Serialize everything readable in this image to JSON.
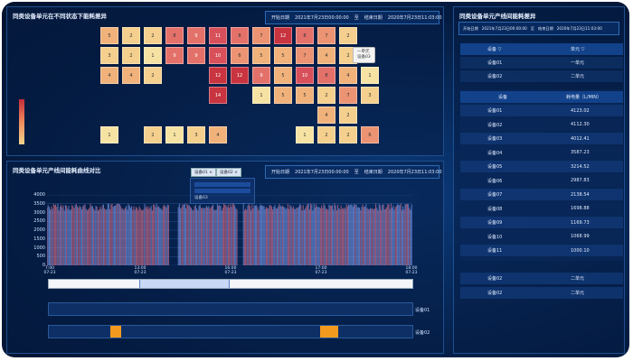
{
  "heatmap": {
    "title": "同类设备单元在不同状态下能耗差异",
    "start_label": "开始日期",
    "start_value": "2021年7月23日00:00:00",
    "sep": "至",
    "end_label": "结束日期",
    "end_value": "2020年7月23日11:03:00",
    "tooltip_line1": "一单元",
    "tooltip_line2": "设备03",
    "rows": [
      [
        "5",
        "2",
        "2",
        "8",
        "9",
        "11",
        "8",
        "7",
        "12",
        "8",
        "7",
        "2"
      ],
      [
        "3",
        "2",
        "1",
        "9",
        "9",
        "10",
        "6",
        "5",
        "5",
        "7",
        "4",
        "2"
      ],
      [
        "4",
        "4",
        "2",
        "",
        "",
        "12",
        "12",
        "9",
        "5",
        "10",
        "8",
        "4",
        "1"
      ],
      [
        "",
        "",
        "",
        "",
        "",
        "14",
        "",
        "1",
        "5",
        "5",
        "2",
        "7",
        "3"
      ],
      [
        "",
        "",
        "",
        "",
        "",
        "",
        "",
        "",
        "",
        "",
        "4",
        "2"
      ],
      [
        "1",
        "",
        "2",
        "1",
        "3",
        "4",
        "",
        "",
        "",
        "1",
        "2",
        "2",
        "6"
      ]
    ]
  },
  "trend": {
    "title": "同类设备单元产线间能耗曲线对比",
    "chip1": "设备01 ×",
    "chip2": "设备02 ×",
    "dd_option": "设备03",
    "start_label": "开始日期",
    "start_value": "2021年7月23日00:00:00",
    "sep": "至",
    "end_label": "结束日期",
    "end_value": "2020年7月23日11:03:00",
    "y_ticks": [
      "4000",
      "3500",
      "3000",
      "2500",
      "2000",
      "1500",
      "1000",
      "500",
      "0"
    ],
    "x_ticks": [
      [
        "7:00",
        "07-23"
      ],
      [
        "13:00",
        "07-23"
      ],
      [
        "16:00",
        "07-23"
      ],
      [
        "17:00",
        "07-23"
      ],
      [
        "18:00",
        "07-23"
      ]
    ],
    "track1_label": "设备01",
    "track2_label": "设备02"
  },
  "right": {
    "title": "同类设备单元产线间能耗差异",
    "start_label": "开始日期",
    "start_value": "2021年7月23日00:00:00",
    "sep": "至",
    "end_label": "结束日期",
    "end_value": "2020年7月23日11:03:00",
    "col_device": "设备 ▽",
    "col_unit": "单元 ▽",
    "filter_rows": [
      [
        "设备01",
        "一单元"
      ],
      [
        "设备02",
        "二单元"
      ]
    ],
    "table_header": [
      "设备",
      "耗电量（L/MIN）"
    ],
    "table_rows": [
      [
        "设备01",
        "4123.02"
      ],
      [
        "设备02",
        "4112.30"
      ],
      [
        "设备03",
        "4012.41"
      ],
      [
        "设备04",
        "3587.23"
      ],
      [
        "设备05",
        "3214.52"
      ],
      [
        "设备06",
        "2987.83"
      ],
      [
        "设备07",
        "2138.54"
      ],
      [
        "设备08",
        "1698.88"
      ],
      [
        "设备09",
        "1169.73"
      ],
      [
        "设备10",
        "1068.99"
      ],
      [
        "设备11",
        "1000.10"
      ]
    ],
    "bottom_rows": [
      [
        "设备02",
        "二单元"
      ],
      [
        "设备02",
        "二单元"
      ]
    ]
  }
}
